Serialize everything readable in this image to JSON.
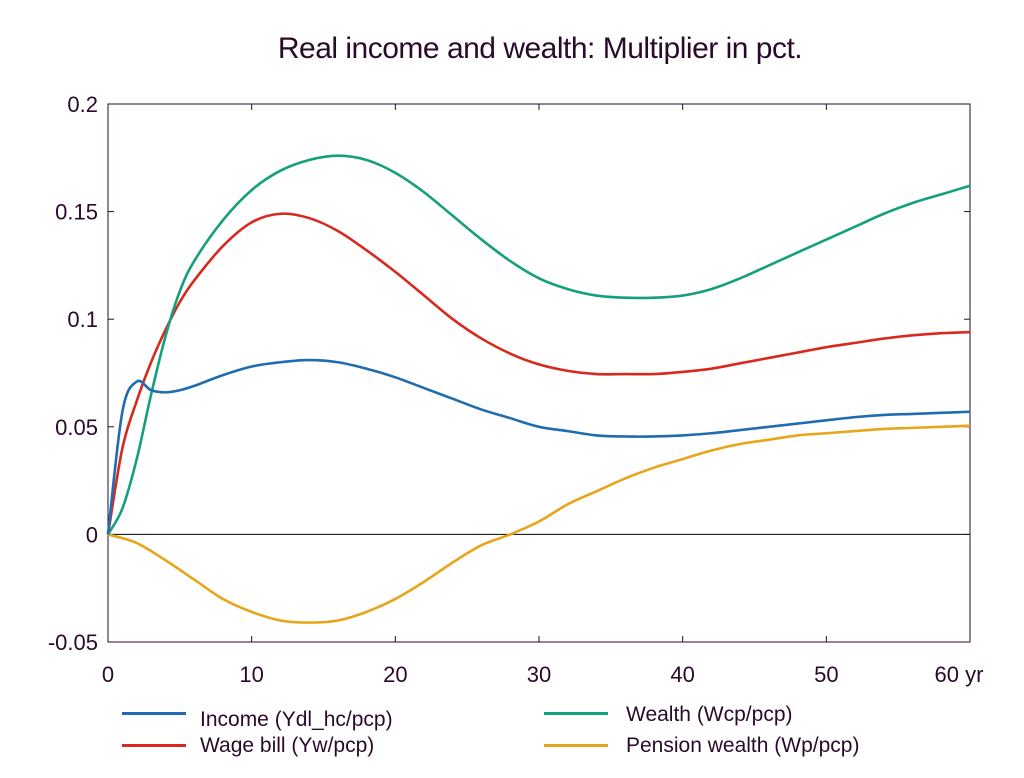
{
  "chart_data": {
    "type": "line",
    "title": "Real income and wealth: Multiplier in pct.",
    "xlabel": "yr",
    "ylabel": "",
    "xlim": [
      0,
      60
    ],
    "ylim": [
      -0.05,
      0.2
    ],
    "xticks": [
      0,
      10,
      20,
      30,
      40,
      50,
      60
    ],
    "xtick_labels": [
      "0",
      "10",
      "20",
      "30",
      "40",
      "50",
      "60 yr"
    ],
    "yticks": [
      -0.05,
      0,
      0.05,
      0.1,
      0.15,
      0.2
    ],
    "ytick_labels": [
      "-0.05",
      "0",
      "0.05",
      "0.1",
      "0.15",
      "0.2"
    ],
    "legend_position": "bottom",
    "series": [
      {
        "name": "Income (Ydl_hc/pcp)",
        "color": "#1f6db0",
        "x": [
          0,
          1,
          2,
          3,
          4,
          5,
          6,
          8,
          10,
          12,
          14,
          16,
          18,
          20,
          22,
          24,
          26,
          28,
          30,
          32,
          34,
          36,
          38,
          40,
          42,
          44,
          46,
          48,
          50,
          52,
          54,
          56,
          58,
          60
        ],
        "y": [
          0,
          0.057,
          0.071,
          0.067,
          0.066,
          0.067,
          0.069,
          0.074,
          0.078,
          0.08,
          0.081,
          0.08,
          0.077,
          0.073,
          0.068,
          0.063,
          0.058,
          0.054,
          0.05,
          0.048,
          0.046,
          0.0455,
          0.0455,
          0.046,
          0.047,
          0.0485,
          0.05,
          0.0515,
          0.053,
          0.0545,
          0.0555,
          0.056,
          0.0565,
          0.057
        ]
      },
      {
        "name": "Wage bill (Yw/pcp)",
        "color": "#d8291f",
        "x": [
          0,
          1,
          2,
          3,
          4,
          5,
          6,
          8,
          10,
          12,
          14,
          16,
          18,
          20,
          22,
          24,
          26,
          28,
          30,
          32,
          34,
          36,
          38,
          40,
          42,
          44,
          46,
          48,
          50,
          52,
          54,
          56,
          58,
          60
        ],
        "y": [
          0,
          0.04,
          0.062,
          0.08,
          0.095,
          0.108,
          0.118,
          0.134,
          0.145,
          0.149,
          0.147,
          0.141,
          0.132,
          0.122,
          0.111,
          0.1,
          0.091,
          0.084,
          0.079,
          0.076,
          0.0745,
          0.0745,
          0.0745,
          0.0755,
          0.077,
          0.0795,
          0.082,
          0.0845,
          0.087,
          0.089,
          0.091,
          0.0925,
          0.0935,
          0.094
        ]
      },
      {
        "name": "Wealth (Wcp/pcp)",
        "color": "#13a07a",
        "x": [
          0,
          1,
          2,
          3,
          4,
          5,
          6,
          8,
          10,
          12,
          14,
          16,
          18,
          20,
          22,
          24,
          26,
          28,
          30,
          32,
          34,
          36,
          38,
          40,
          42,
          44,
          46,
          48,
          50,
          52,
          54,
          56,
          58,
          60
        ],
        "y": [
          0,
          0.012,
          0.035,
          0.065,
          0.092,
          0.113,
          0.127,
          0.146,
          0.16,
          0.169,
          0.174,
          0.176,
          0.174,
          0.168,
          0.159,
          0.148,
          0.137,
          0.127,
          0.119,
          0.114,
          0.111,
          0.11,
          0.11,
          0.111,
          0.114,
          0.119,
          0.125,
          0.131,
          0.137,
          0.143,
          0.149,
          0.154,
          0.158,
          0.162
        ]
      },
      {
        "name": "Pension wealth (Wp/pcp)",
        "color": "#e8a51a",
        "x": [
          0,
          2,
          4,
          6,
          8,
          10,
          12,
          14,
          16,
          18,
          20,
          22,
          24,
          26,
          28,
          30,
          32,
          34,
          36,
          38,
          40,
          42,
          44,
          46,
          48,
          50,
          52,
          54,
          56,
          58,
          60
        ],
        "y": [
          0,
          -0.004,
          -0.012,
          -0.021,
          -0.03,
          -0.036,
          -0.04,
          -0.041,
          -0.04,
          -0.036,
          -0.03,
          -0.022,
          -0.013,
          -0.005,
          0.0,
          0.006,
          0.014,
          0.02,
          0.026,
          0.031,
          0.035,
          0.039,
          0.042,
          0.044,
          0.046,
          0.047,
          0.048,
          0.049,
          0.0495,
          0.05,
          0.0505
        ]
      }
    ]
  }
}
